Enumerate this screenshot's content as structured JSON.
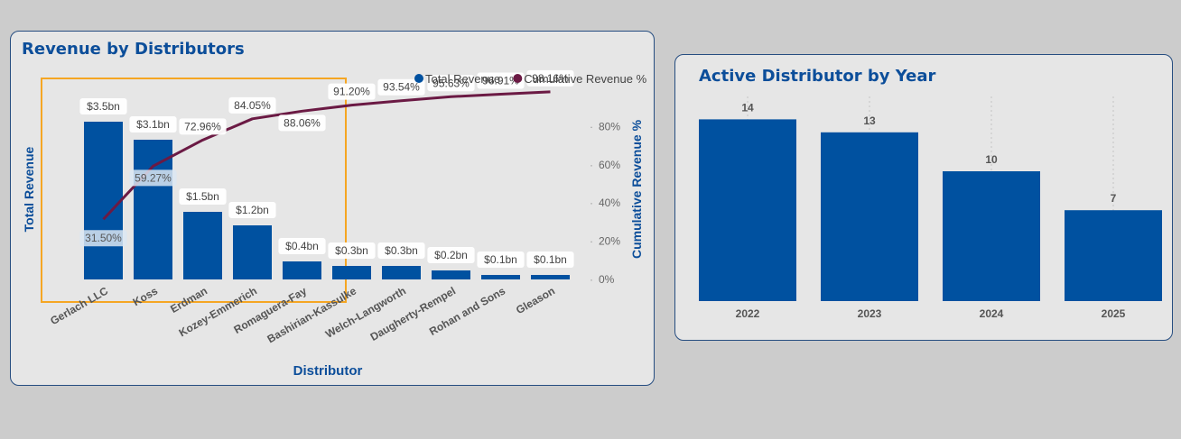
{
  "chart_data": [
    {
      "type": "bar",
      "title": "Revenue by Distributors",
      "xlabel": "Distributor",
      "ylabel": "Total Revenue",
      "y2label": "Cumulative Revenue %",
      "categories": [
        "Gerlach LLC",
        "Koss",
        "Erdman",
        "Kozey-Emmerich",
        "Romaguera-Fay",
        "Bashirian-Kassulke",
        "Welch-Langworth",
        "Daugherty-Rempel",
        "Rohan and Sons",
        "Gleason"
      ],
      "series": [
        {
          "name": "Total Revenue",
          "type": "bar",
          "values": [
            3.5,
            3.1,
            1.5,
            1.2,
            0.4,
            0.3,
            0.3,
            0.2,
            0.1,
            0.1
          ],
          "labels": [
            "$3.5bn",
            "$3.1bn",
            "$1.5bn",
            "$1.2bn",
            "$0.4bn",
            "$0.3bn",
            "$0.3bn",
            "$0.2bn",
            "$0.1bn",
            "$0.1bn"
          ],
          "color": "#0051a0"
        },
        {
          "name": "Cumulative Revenue %",
          "type": "line",
          "values": [
            31.5,
            59.27,
            72.96,
            84.05,
            88.06,
            91.2,
            93.54,
            95.63,
            96.91,
            98.16
          ],
          "labels": [
            "31.50%",
            "59.27%",
            "72.96%",
            "84.05%",
            "88.06%",
            "91.20%",
            "93.54%",
            "95.63%",
            "96.91%",
            "98.16%"
          ],
          "color": "#6b1a44"
        }
      ],
      "y2ticks": [
        "0%",
        "20%",
        "40%",
        "60%",
        "80%"
      ],
      "y2lim": [
        0,
        100
      ],
      "highlight_color": "#f5a623",
      "legend_position": "top-right",
      "grid": false
    },
    {
      "type": "bar",
      "title": "Active Distributor by Year",
      "categories": [
        "2022",
        "2023",
        "2024",
        "2025"
      ],
      "values": [
        14,
        13,
        10,
        7
      ],
      "color": "#0051a0",
      "grid": false
    }
  ]
}
